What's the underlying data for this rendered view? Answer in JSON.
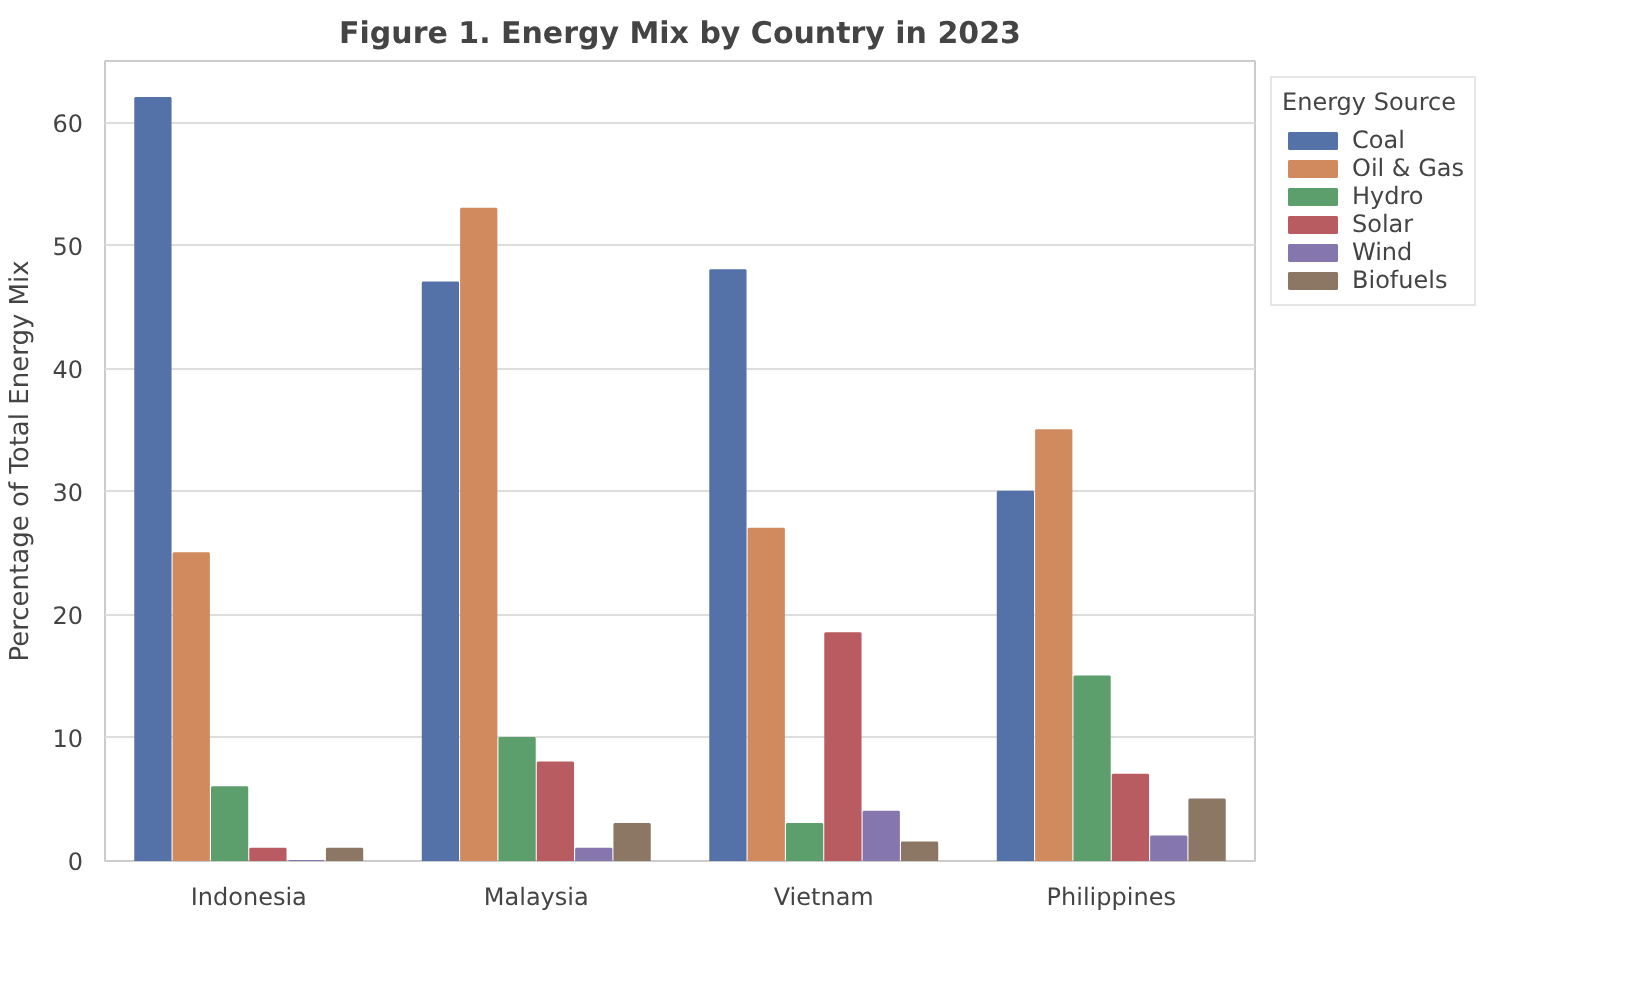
{
  "chart_data": {
    "type": "bar",
    "title": "Figure 1. Energy Mix by Country in 2023",
    "ylabel": "Percentage of Total Energy Mix",
    "legend_title": "Energy Source",
    "categories": [
      "Indonesia",
      "Malaysia",
      "Vietnam",
      "Philippines"
    ],
    "series": [
      {
        "name": "Coal",
        "color": "#5471a8",
        "values": [
          62,
          47,
          48,
          30
        ]
      },
      {
        "name": "Oil & Gas",
        "color": "#d08a5e",
        "values": [
          25,
          53,
          27,
          35
        ]
      },
      {
        "name": "Hydro",
        "color": "#5d9e6d",
        "values": [
          6,
          10,
          3,
          15
        ]
      },
      {
        "name": "Solar",
        "color": "#b85c61",
        "values": [
          1,
          8,
          18.5,
          7
        ]
      },
      {
        "name": "Wind",
        "color": "#8676ae",
        "values": [
          0,
          1,
          4,
          2
        ]
      },
      {
        "name": "Biofuels",
        "color": "#8c7664",
        "values": [
          1,
          3,
          1.5,
          5
        ]
      }
    ],
    "ylim": [
      0,
      65
    ],
    "yticks": [
      0,
      10,
      20,
      30,
      40,
      50,
      60
    ],
    "grid": "y",
    "legend": "top right"
  }
}
